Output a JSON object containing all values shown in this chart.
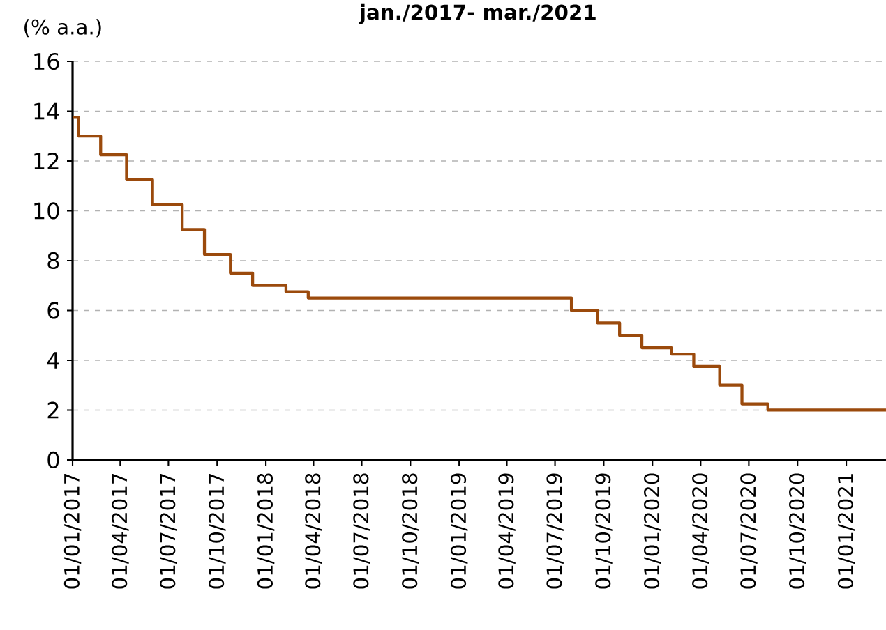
{
  "chart_data": {
    "type": "step",
    "title": "jan./2017- mar./2021",
    "ylabel": "(% a.a.)",
    "x": [
      "2017-01-01",
      "2017-01-12",
      "2017-02-23",
      "2017-04-13",
      "2017-06-01",
      "2017-07-27",
      "2017-09-07",
      "2017-10-26",
      "2017-12-07",
      "2018-02-08",
      "2018-03-22",
      "2019-08-01",
      "2019-09-19",
      "2019-10-31",
      "2019-12-12",
      "2020-02-06",
      "2020-03-19",
      "2020-05-07",
      "2020-06-18",
      "2020-08-06",
      "2021-03-17"
    ],
    "values": [
      13.75,
      13,
      12.25,
      11.25,
      10.25,
      9.25,
      8.25,
      7.5,
      7,
      6.75,
      6.5,
      6,
      5.5,
      5,
      4.5,
      4.25,
      3.75,
      3,
      2.25,
      2,
      2
    ],
    "color": "#9b4a0c",
    "line_style": "solid",
    "grid": "y",
    "xlim": [
      "2017-01-01",
      "2021-03-17"
    ],
    "xticks": [
      {
        "value": "2017-01-01",
        "label": "01/01/2017"
      },
      {
        "value": "2017-04-01",
        "label": "01/04/2017"
      },
      {
        "value": "2017-07-01",
        "label": "01/07/2017"
      },
      {
        "value": "2017-10-01",
        "label": "01/10/2017"
      },
      {
        "value": "2018-01-01",
        "label": "01/01/2018"
      },
      {
        "value": "2018-04-01",
        "label": "01/04/2018"
      },
      {
        "value": "2018-07-01",
        "label": "01/07/2018"
      },
      {
        "value": "2018-10-01",
        "label": "01/10/2018"
      },
      {
        "value": "2019-01-01",
        "label": "01/01/2019"
      },
      {
        "value": "2019-04-01",
        "label": "01/04/2019"
      },
      {
        "value": "2019-07-01",
        "label": "01/07/2019"
      },
      {
        "value": "2019-10-01",
        "label": "01/10/2019"
      },
      {
        "value": "2020-01-01",
        "label": "01/01/2020"
      },
      {
        "value": "2020-04-01",
        "label": "01/04/2020"
      },
      {
        "value": "2020-07-01",
        "label": "01/07/2020"
      },
      {
        "value": "2020-10-01",
        "label": "01/10/2020"
      },
      {
        "value": "2021-01-01",
        "label": "01/01/2021"
      }
    ],
    "ylim": [
      0,
      16
    ],
    "yticks": [
      0,
      2,
      4,
      6,
      8,
      10,
      12,
      14,
      16
    ]
  }
}
